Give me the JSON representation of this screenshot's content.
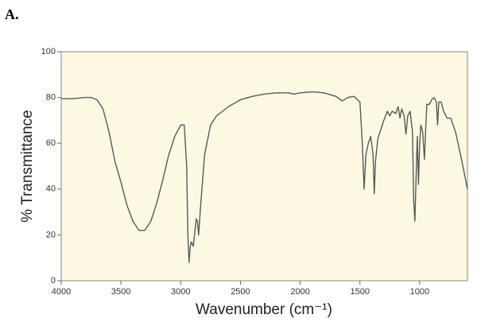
{
  "chart_data": {
    "type": "line",
    "title": "A.",
    "x_label": "Wavenumber (cm⁻¹)",
    "y_label": "% Transmittance",
    "x": [
      4000,
      3900,
      3800,
      3750,
      3700,
      3650,
      3600,
      3550,
      3500,
      3450,
      3400,
      3350,
      3300,
      3250,
      3200,
      3150,
      3100,
      3050,
      3000,
      2970,
      2950,
      2940,
      2930,
      2920,
      2910,
      2895,
      2880,
      2870,
      2860,
      2850,
      2830,
      2800,
      2750,
      2700,
      2650,
      2600,
      2500,
      2400,
      2300,
      2200,
      2100,
      2050,
      2000,
      1900,
      1800,
      1700,
      1650,
      1600,
      1550,
      1500,
      1480,
      1465,
      1450,
      1430,
      1410,
      1390,
      1380,
      1370,
      1350,
      1300,
      1270,
      1250,
      1230,
      1200,
      1180,
      1165,
      1150,
      1130,
      1115,
      1100,
      1080,
      1060,
      1050,
      1040,
      1030,
      1020,
      1010,
      1000,
      990,
      975,
      960,
      950,
      940,
      920,
      900,
      880,
      860,
      850,
      840,
      820,
      800,
      770,
      740,
      700,
      650,
      600
    ],
    "values": [
      79.5,
      79.5,
      80,
      80,
      79,
      75,
      65,
      52,
      43,
      33,
      26,
      22,
      22,
      26,
      34,
      44,
      55,
      63,
      68,
      68,
      50,
      20,
      8,
      15,
      17,
      15,
      22,
      27,
      26,
      20,
      35,
      55,
      68,
      72,
      74,
      76,
      79,
      80.5,
      81.5,
      82,
      82,
      81.5,
      82,
      82.5,
      82,
      80.5,
      78.5,
      80,
      80.5,
      78,
      60,
      40,
      55,
      60,
      63,
      55,
      38,
      52,
      62,
      70,
      74,
      72,
      74,
      73,
      76,
      71,
      75,
      72,
      64,
      72,
      74,
      65,
      35,
      26,
      45,
      63,
      42,
      60,
      68,
      65,
      53,
      66,
      77,
      77,
      79,
      80,
      78,
      68,
      78,
      78,
      74,
      71,
      71,
      65,
      53,
      40
    ],
    "color": "#5a5a5a",
    "background": "#fdf8e1",
    "xlim": [
      4000,
      600
    ],
    "xticks": [
      4000,
      3500,
      3000,
      2500,
      2000,
      1500,
      1000
    ],
    "ylim": [
      0,
      100
    ],
    "yticks": [
      0,
      20,
      40,
      60,
      80,
      100
    ]
  }
}
